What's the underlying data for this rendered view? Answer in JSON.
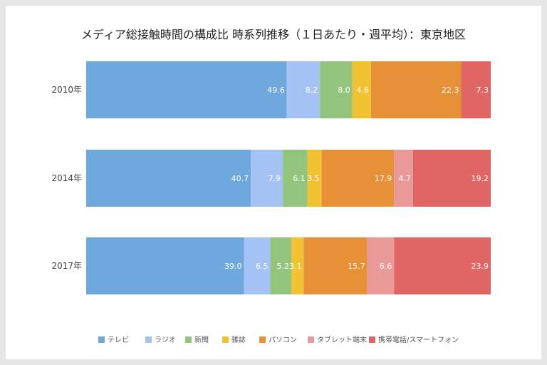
{
  "chart_data": {
    "type": "bar",
    "orientation": "horizontal",
    "stacked": "percent",
    "title": "メディア総接触時間の構成比 時系列推移（１日あたり・週平均）：東京地区",
    "categories": [
      "2010年",
      "2014年",
      "2017年"
    ],
    "series": [
      {
        "name": "テレビ",
        "color": "#6fa8dc",
        "values": [
          49.6,
          40.7,
          39.0
        ]
      },
      {
        "name": "ラジオ",
        "color": "#a4c2f4",
        "values": [
          8.2,
          7.9,
          6.5
        ]
      },
      {
        "name": "新聞",
        "color": "#93c47d",
        "values": [
          8.0,
          6.1,
          5.2
        ]
      },
      {
        "name": "雑誌",
        "color": "#f1c232",
        "values": [
          4.6,
          3.5,
          3.1
        ]
      },
      {
        "name": "パソコン",
        "color": "#e69138",
        "values": [
          22.3,
          17.9,
          15.7
        ]
      },
      {
        "name": "タブレット端末",
        "color": "#ea9999",
        "values": [
          0,
          4.7,
          6.6
        ]
      },
      {
        "name": "携帯電話/スマートフォン",
        "color": "#e06666",
        "values": [
          7.3,
          19.2,
          23.9
        ]
      }
    ],
    "legend": "bottom",
    "grid": false
  }
}
